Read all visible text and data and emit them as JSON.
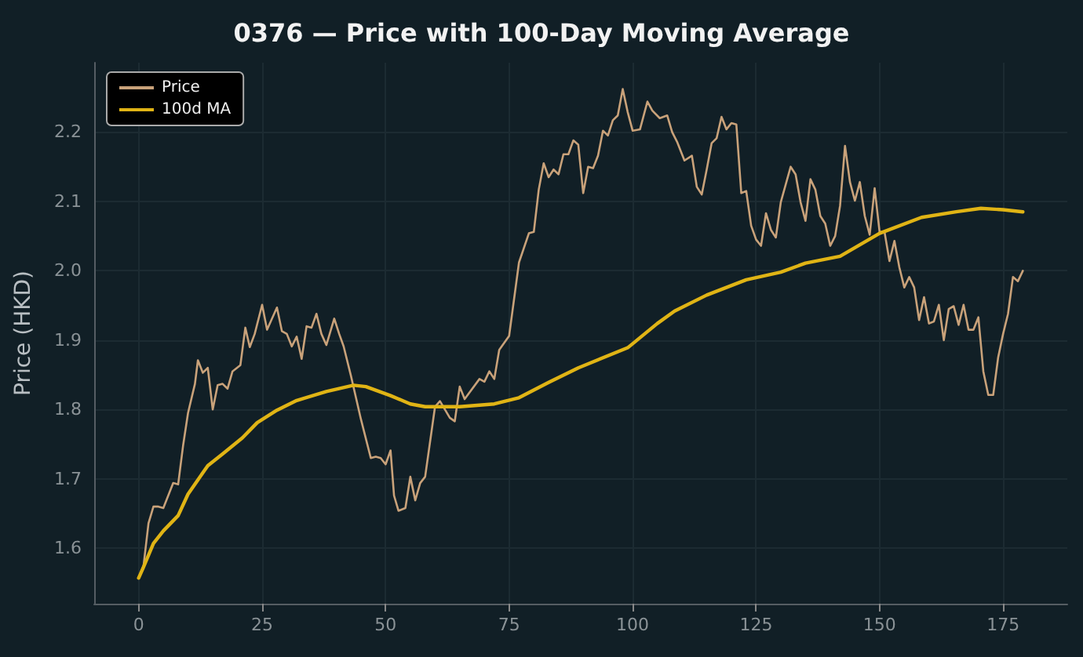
{
  "chart_data": {
    "type": "line",
    "title": "0376 — Price with 100-Day Moving Average",
    "ylabel": "Price (HKD)",
    "xlim": [
      -9,
      188
    ],
    "xticks": [
      0,
      25,
      50,
      75,
      100,
      125,
      150,
      175
    ],
    "ylim": [
      1.52,
      2.3
    ],
    "yticks": [
      1.6,
      1.7,
      1.8,
      1.9,
      {
        "value": 2,
        "label": "2.0"
      },
      2.1,
      2.2
    ],
    "grid": true,
    "legend": "top left",
    "marker": "none",
    "line_style": "solid",
    "series": [
      {
        "name": "Price",
        "color": "#c9a27a",
        "x": [
          0,
          1,
          2,
          3,
          4,
          5,
          7,
          8,
          9,
          10,
          11.4,
          12,
          13,
          14,
          15,
          16,
          17,
          18,
          19,
          20.6,
          21.6,
          22.5,
          23.5,
          25,
          26,
          28,
          29,
          30,
          31,
          32,
          33,
          34,
          35,
          36,
          37,
          38,
          39.6,
          40.6,
          41.5,
          43,
          45,
          47,
          48,
          49,
          50,
          51,
          51.7,
          52.6,
          54,
          55,
          56,
          57,
          58,
          60,
          61,
          63,
          64,
          65,
          66,
          69,
          70,
          71,
          72,
          73,
          75,
          77,
          79,
          80,
          81,
          82,
          83,
          84,
          85,
          86,
          87,
          88,
          89,
          90,
          91,
          92,
          93,
          94,
          95,
          96,
          97,
          98,
          99,
          100,
          101.5,
          103,
          104,
          105.5,
          107,
          108,
          109,
          110.5,
          112,
          113,
          114,
          115,
          116,
          117,
          118,
          119,
          120,
          121,
          122,
          123,
          124,
          125,
          126,
          127,
          128,
          129,
          130,
          132,
          133,
          134,
          135,
          136,
          137,
          138,
          139,
          140,
          141,
          142,
          143,
          144,
          145,
          146,
          147,
          148,
          149,
          150,
          151,
          152,
          153,
          154,
          155,
          156,
          157,
          158,
          159,
          160,
          161,
          162,
          163,
          164,
          165,
          166,
          167,
          168,
          169,
          170,
          171,
          172,
          173,
          174,
          175,
          176,
          177,
          178,
          179
        ],
        "values": [
          1.557,
          1.575,
          1.636,
          1.66,
          1.66,
          1.658,
          1.694,
          1.692,
          1.748,
          1.795,
          1.837,
          1.871,
          1.853,
          1.86,
          1.8,
          1.835,
          1.837,
          1.83,
          1.855,
          1.864,
          1.918,
          1.89,
          1.909,
          1.951,
          1.915,
          1.947,
          1.913,
          1.909,
          1.891,
          1.905,
          1.873,
          1.92,
          1.918,
          1.938,
          1.909,
          1.893,
          1.931,
          1.909,
          1.891,
          1.848,
          1.786,
          1.73,
          1.732,
          1.73,
          1.721,
          1.741,
          1.676,
          1.654,
          1.658,
          1.703,
          1.669,
          1.694,
          1.703,
          1.804,
          1.812,
          1.788,
          1.783,
          1.833,
          1.815,
          1.844,
          1.84,
          1.855,
          1.844,
          1.886,
          1.906,
          2.012,
          2.054,
          2.056,
          2.117,
          2.155,
          2.135,
          2.146,
          2.139,
          2.168,
          2.168,
          2.188,
          2.182,
          2.112,
          2.15,
          2.148,
          2.166,
          2.202,
          2.195,
          2.217,
          2.224,
          2.262,
          2.229,
          2.202,
          2.204,
          2.244,
          2.231,
          2.22,
          2.224,
          2.2,
          2.186,
          2.159,
          2.166,
          2.121,
          2.11,
          2.146,
          2.184,
          2.191,
          2.222,
          2.204,
          2.213,
          2.211,
          2.112,
          2.115,
          2.065,
          2.045,
          2.036,
          2.083,
          2.059,
          2.048,
          2.099,
          2.15,
          2.139,
          2.099,
          2.072,
          2.132,
          2.117,
          2.079,
          2.068,
          2.036,
          2.05,
          2.094,
          2.18,
          2.128,
          2.101,
          2.128,
          2.079,
          2.052,
          2.119,
          2.056,
          2.056,
          2.014,
          2.043,
          2.005,
          1.976,
          1.991,
          1.976,
          1.929,
          1.962,
          1.924,
          1.927,
          1.951,
          1.9,
          1.945,
          1.949,
          1.922,
          1.951,
          1.915,
          1.915,
          1.933,
          1.855,
          1.821,
          1.821,
          1.875,
          1.909,
          1.938,
          1.991,
          1.985,
          2.0
        ]
      },
      {
        "name": "100d MA",
        "color": "#e0b415",
        "x": [
          0,
          1,
          3,
          5,
          8,
          10,
          14,
          17,
          21,
          24,
          28,
          32,
          38,
          43.5,
          46,
          51,
          55,
          58,
          65,
          72,
          77,
          83,
          89,
          99,
          105,
          108.5,
          115,
          123,
          130,
          135,
          142,
          150,
          158.5,
          165.5,
          170.5,
          175,
          179
        ],
        "values": [
          1.557,
          1.573,
          1.607,
          1.625,
          1.647,
          1.678,
          1.719,
          1.736,
          1.759,
          1.781,
          1.799,
          1.813,
          1.826,
          1.835,
          1.833,
          1.82,
          1.808,
          1.804,
          1.804,
          1.808,
          1.817,
          1.839,
          1.86,
          1.889,
          1.924,
          1.942,
          1.965,
          1.987,
          1.998,
          2.011,
          2.021,
          2.054,
          2.077,
          2.085,
          2.09,
          2.088,
          2.085
        ]
      }
    ]
  }
}
